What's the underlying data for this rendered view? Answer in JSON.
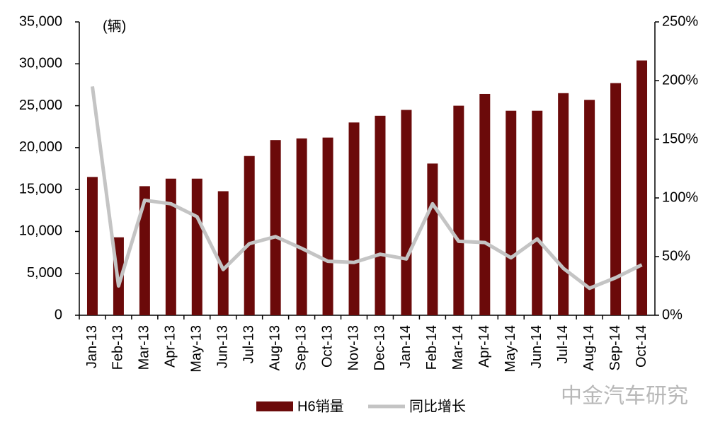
{
  "chart_data": {
    "type": "bar",
    "annotation": "(辆)",
    "watermark": "中金汽车研究",
    "categories": [
      "Jan-13",
      "Feb-13",
      "Mar-13",
      "Apr-13",
      "May-13",
      "Jun-13",
      "Jul-13",
      "Aug-13",
      "Sep-13",
      "Oct-13",
      "Nov-13",
      "Dec-13",
      "Jan-14",
      "Feb-14",
      "Mar-14",
      "Apr-14",
      "May-14",
      "Jun-14",
      "Jul-14",
      "Aug-14",
      "Sep-14",
      "Oct-14"
    ],
    "series": [
      {
        "name": "H6销量",
        "type": "bar",
        "color": "#6b0a0a",
        "values": [
          16500,
          9300,
          15400,
          16300,
          16300,
          14800,
          19000,
          20900,
          21100,
          21200,
          23000,
          23800,
          24500,
          18100,
          25000,
          26400,
          24400,
          24400,
          26500,
          25700,
          27700,
          30400
        ]
      },
      {
        "name": "同比增长",
        "type": "line",
        "axis": "y2",
        "color": "#c4c4c4",
        "values": [
          195,
          25,
          98,
          95,
          84,
          39,
          61,
          67,
          57,
          46,
          45,
          52,
          48,
          95,
          63,
          62,
          49,
          65,
          40,
          23,
          32,
          43
        ]
      }
    ],
    "ylim": [
      0,
      35000
    ],
    "yticks": [
      0,
      {
        "value": 5000,
        "label": "5,000"
      },
      {
        "value": 10000,
        "label": "10,000"
      },
      {
        "value": 15000,
        "label": "15,000"
      },
      {
        "value": 20000,
        "label": "20,000"
      },
      {
        "value": 25000,
        "label": "25,000"
      },
      {
        "value": 30000,
        "label": "30,000"
      },
      {
        "value": 35000,
        "label": "35,000"
      }
    ],
    "y2lim": [
      0,
      250
    ],
    "y2ticks": [
      {
        "value": 0,
        "label": "0%"
      },
      {
        "value": 50,
        "label": "50%"
      },
      {
        "value": 100,
        "label": "100%"
      },
      {
        "value": 150,
        "label": "150%"
      },
      {
        "value": 200,
        "label": "200%"
      },
      {
        "value": 250,
        "label": "250%"
      }
    ],
    "grid": false,
    "legend": "bottom"
  }
}
